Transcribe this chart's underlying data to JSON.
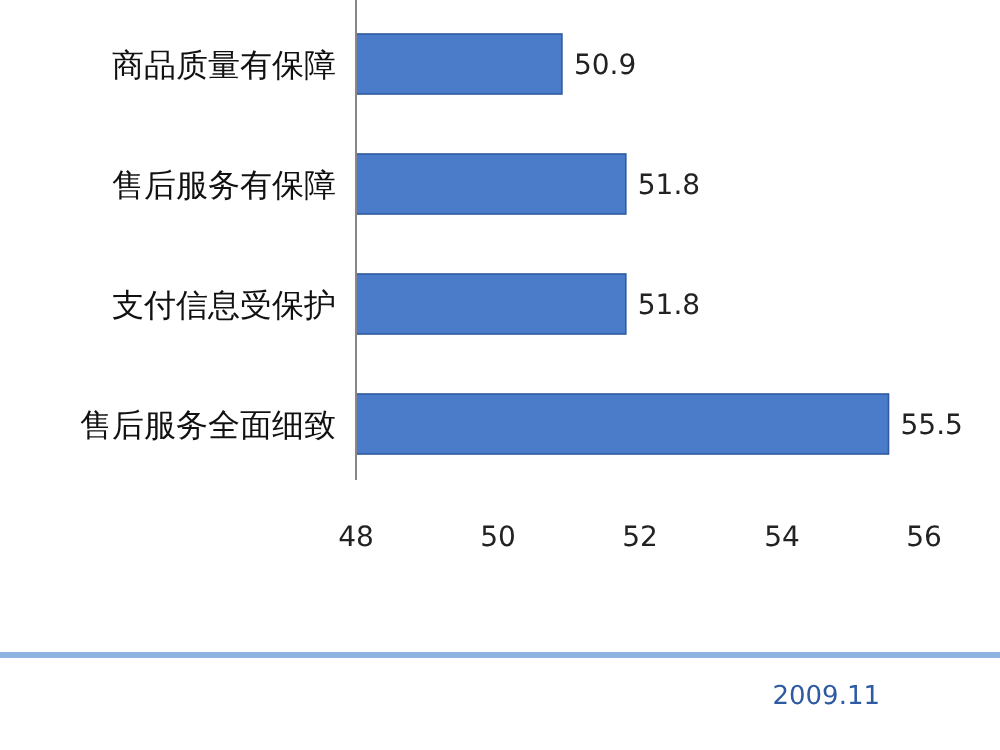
{
  "chart_data": {
    "type": "bar",
    "orientation": "horizontal",
    "categories": [
      "商品质量有保障",
      "售后服务有保障",
      "支付信息受保护",
      "售后服务全面细致"
    ],
    "values": [
      50.9,
      51.8,
      51.8,
      55.5
    ],
    "color": "#4a7cc9",
    "xlim": [
      48,
      56
    ],
    "xticks": [
      48,
      50,
      52,
      54,
      56
    ],
    "data_labels": true,
    "annotations": [
      "2009.11"
    ]
  }
}
